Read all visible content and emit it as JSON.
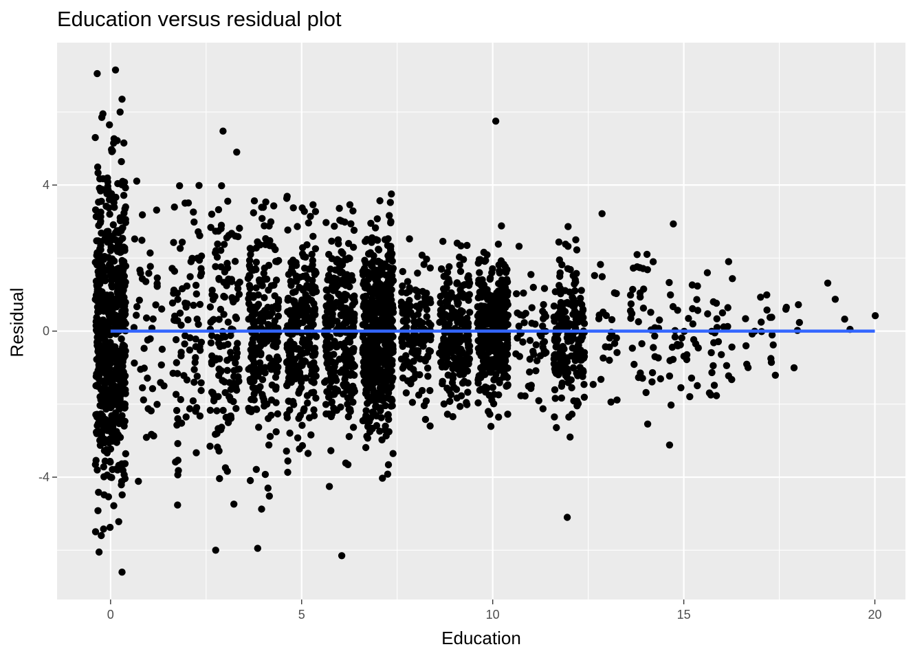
{
  "chart_data": {
    "type": "scatter",
    "title": "Education versus residual plot",
    "xlabel": "Education",
    "ylabel": "Residual",
    "xlim": [
      -1.4,
      20.8
    ],
    "ylim": [
      -7.35,
      7.9
    ],
    "x_ticks": [
      0,
      5,
      10,
      15,
      20
    ],
    "x_tick_labels": [
      "0",
      "5",
      "10",
      "15",
      "20"
    ],
    "y_ticks": [
      -4,
      0,
      4
    ],
    "y_tick_labels": [
      "-4",
      "0",
      "4"
    ],
    "grid": true,
    "panel_background": "#ebebeb",
    "point_color": "#000000",
    "fit_line": {
      "x": [
        0,
        20
      ],
      "y": [
        0,
        0
      ],
      "color": "#3366ff"
    },
    "education_levels": [
      {
        "x": 0,
        "n": 620,
        "sd": 2.0
      },
      {
        "x": 1,
        "n": 45,
        "sd": 1.8
      },
      {
        "x": 2,
        "n": 90,
        "sd": 1.8
      },
      {
        "x": 3,
        "n": 140,
        "sd": 1.8
      },
      {
        "x": 4,
        "n": 230,
        "sd": 1.6
      },
      {
        "x": 5,
        "n": 250,
        "sd": 1.5
      },
      {
        "x": 6,
        "n": 280,
        "sd": 1.4
      },
      {
        "x": 7,
        "n": 560,
        "sd": 1.35
      },
      {
        "x": 8,
        "n": 140,
        "sd": 0.9
      },
      {
        "x": 9,
        "n": 230,
        "sd": 0.9
      },
      {
        "x": 10,
        "n": 360,
        "sd": 0.95
      },
      {
        "x": 11,
        "n": 55,
        "sd": 0.8
      },
      {
        "x": 12,
        "n": 190,
        "sd": 0.95
      },
      {
        "x": 13,
        "n": 25,
        "sd": 1.0
      },
      {
        "x": 14,
        "n": 40,
        "sd": 1.1
      },
      {
        "x": 15,
        "n": 35,
        "sd": 1.0
      },
      {
        "x": 16,
        "n": 28,
        "sd": 0.9
      },
      {
        "x": 17,
        "n": 18,
        "sd": 0.8
      },
      {
        "x": 18,
        "n": 6,
        "sd": 0.8
      },
      {
        "x": 19,
        "n": 4,
        "sd": 0.8
      },
      {
        "x": 20,
        "n": 1,
        "sd": 0.5
      }
    ],
    "jitter_width": 0.4,
    "extreme_points": [
      {
        "x": -0.35,
        "y": 7.05
      },
      {
        "x": 0.13,
        "y": 7.15
      },
      {
        "x": 0.3,
        "y": 6.35
      },
      {
        "x": -0.2,
        "y": 5.95
      },
      {
        "x": 0.25,
        "y": 6.0
      },
      {
        "x": 10.08,
        "y": 5.75
      },
      {
        "x": -0.4,
        "y": 5.3
      },
      {
        "x": 3.3,
        "y": 4.9
      },
      {
        "x": 6.05,
        "y": -6.15
      },
      {
        "x": 0.3,
        "y": -6.6
      },
      {
        "x": -0.3,
        "y": -6.05
      },
      {
        "x": 11.95,
        "y": -5.1
      },
      {
        "x": 2.75,
        "y": -6.0
      },
      {
        "x": 3.85,
        "y": -5.95
      }
    ]
  }
}
